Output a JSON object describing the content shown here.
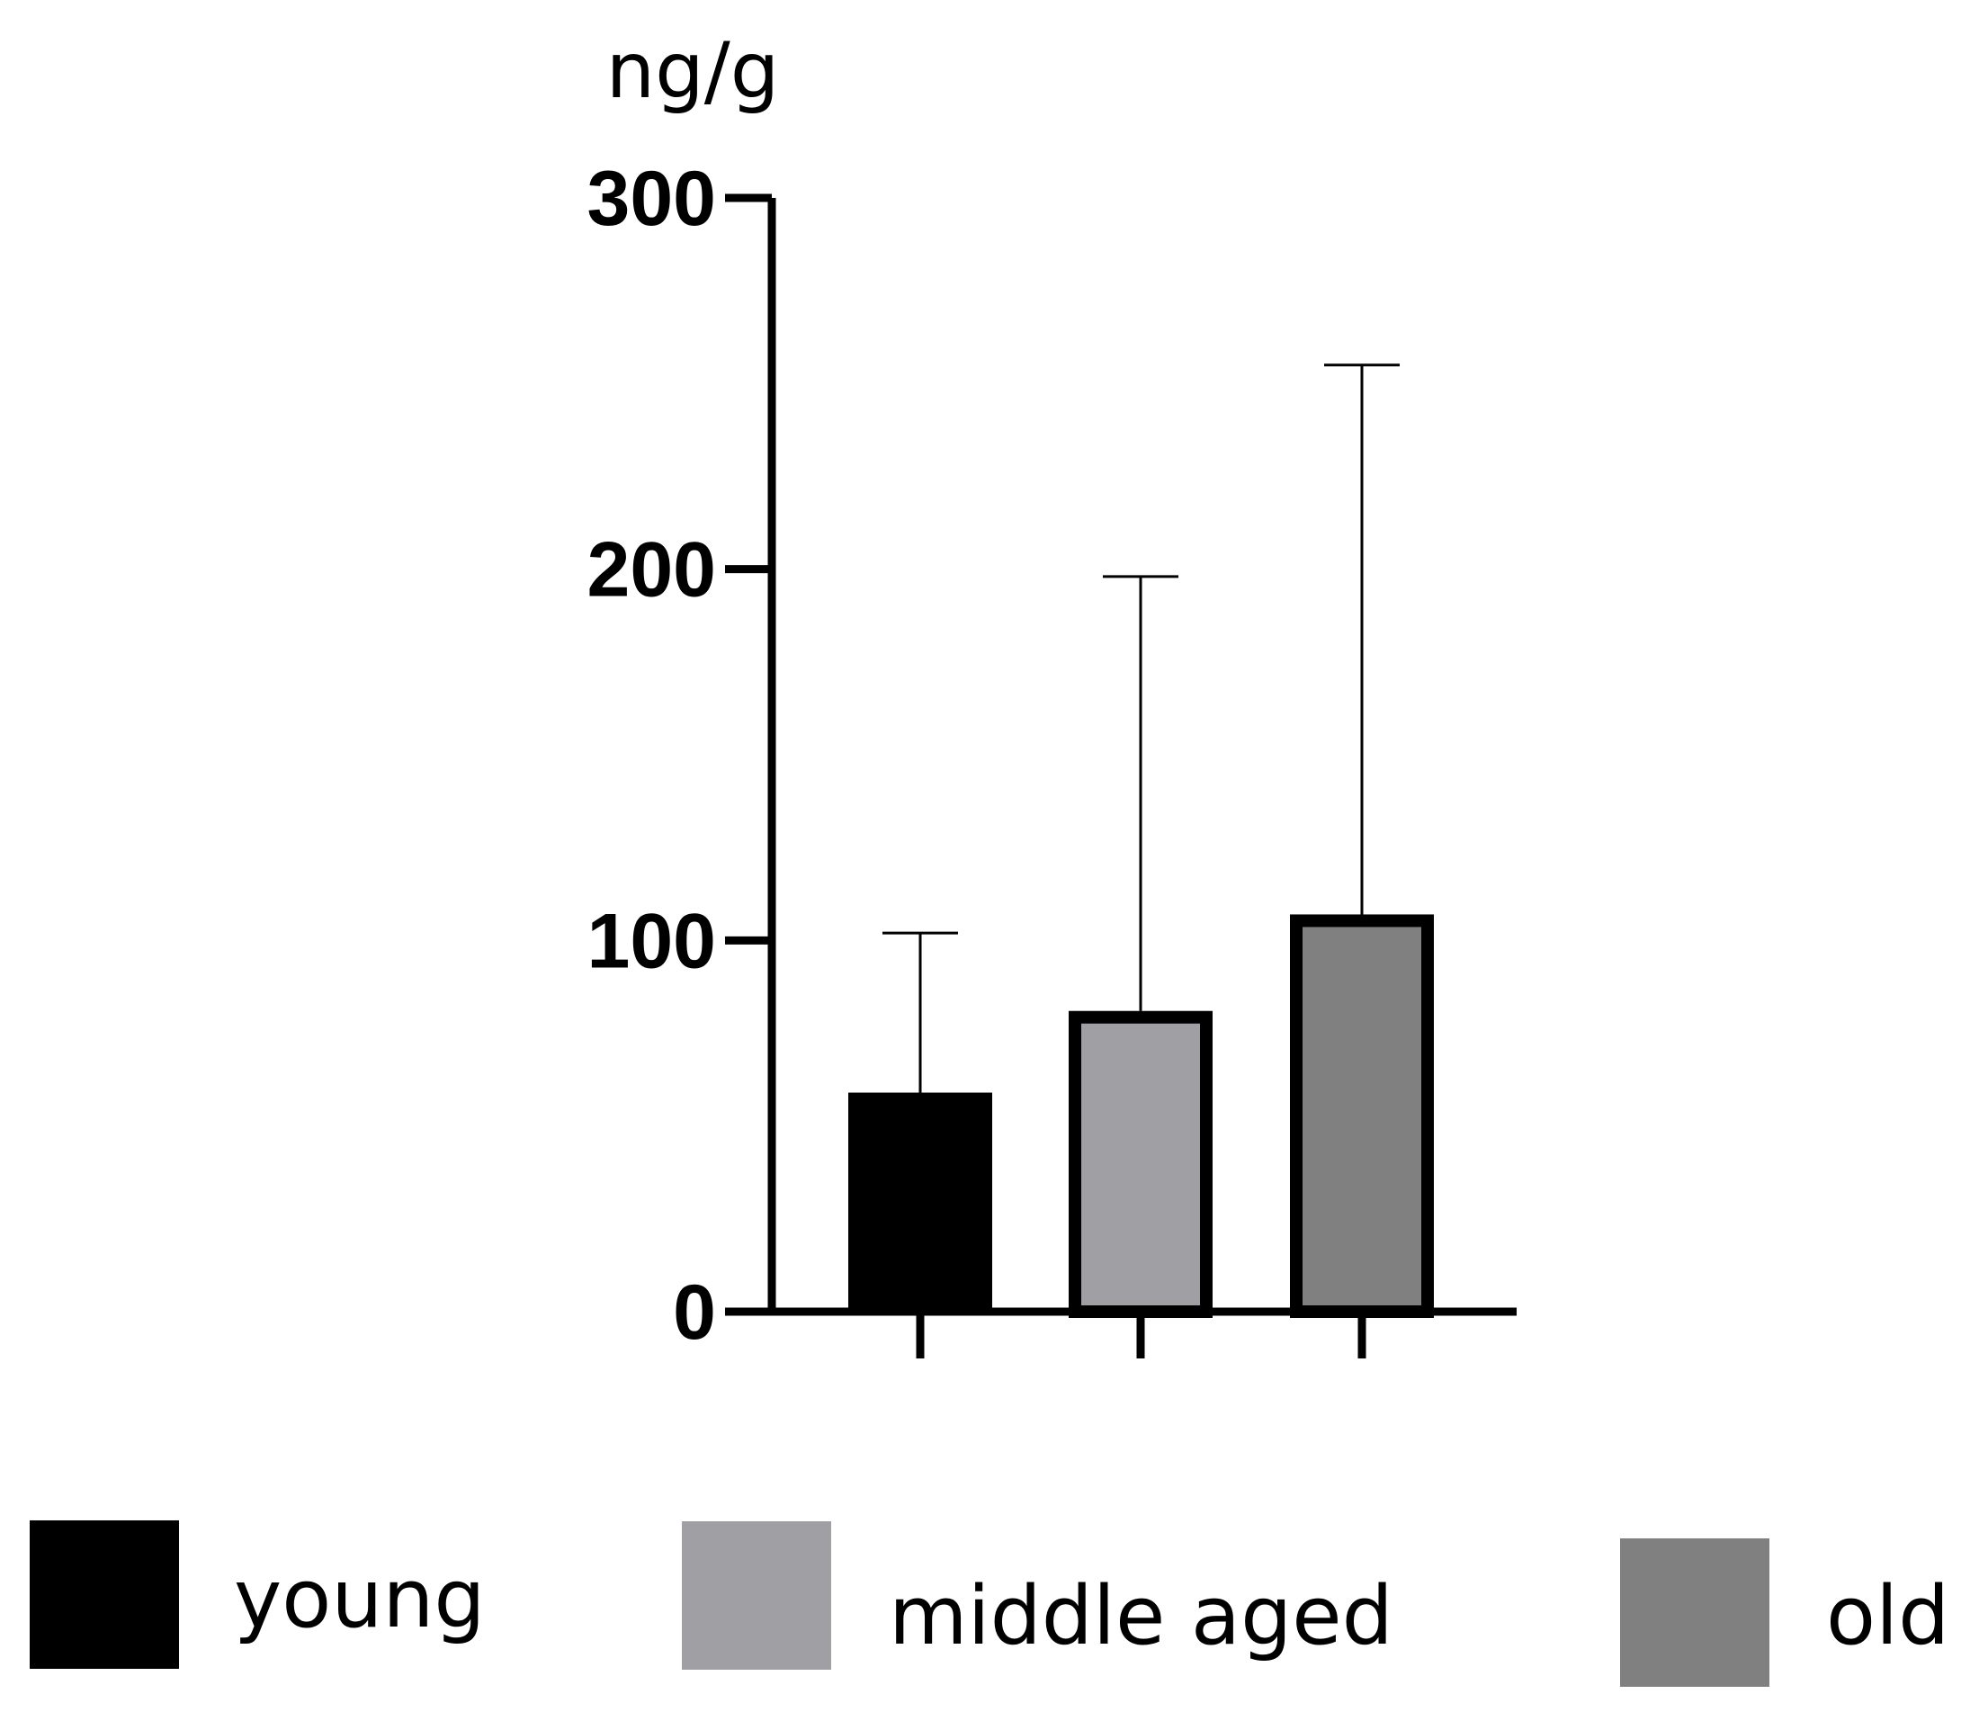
{
  "chart_data": {
    "type": "bar",
    "title": "",
    "xlabel": "",
    "ylabel": "ng/g",
    "ylim": [
      0,
      300
    ],
    "yticks": [
      0,
      100,
      200,
      300
    ],
    "grid": false,
    "categories": [
      "young",
      "middle aged",
      "old"
    ],
    "values": [
      59,
      81,
      107
    ],
    "error_upper": [
      102,
      198,
      255
    ],
    "colors": [
      "#000000",
      "#a0a0a4",
      "#808080"
    ],
    "legend": {
      "placement": "bottom",
      "entries": [
        {
          "label": "young",
          "color": "#000000"
        },
        {
          "label": "middle aged",
          "color": "#a0a0a4"
        },
        {
          "label": "old",
          "color": "#808080"
        }
      ]
    }
  }
}
